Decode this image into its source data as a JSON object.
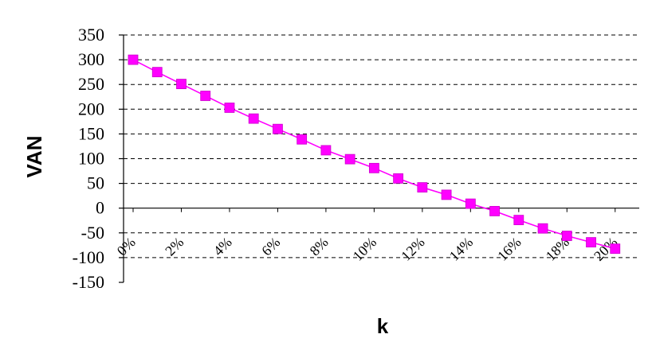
{
  "chart_data": {
    "type": "line",
    "title": "",
    "xlabel": "k",
    "ylabel": "VAN",
    "ylim": [
      -150,
      350
    ],
    "yticks": [
      350,
      300,
      250,
      200,
      150,
      100,
      50,
      0,
      -50,
      -100,
      -150
    ],
    "xlim": [
      0,
      0.21
    ],
    "xticks": [
      "0%",
      "2%",
      "4%",
      "6%",
      "8%",
      "10%",
      "12%",
      "14%",
      "16%",
      "18%",
      "20%"
    ],
    "grid": "horizontal-dashed",
    "legend": "none",
    "series": [
      {
        "color": "#ff00ff",
        "marker": "square",
        "x": [
          0,
          0.01,
          0.02,
          0.03,
          0.04,
          0.05,
          0.06,
          0.07,
          0.08,
          0.09,
          0.1,
          0.11,
          0.12,
          0.13,
          0.14,
          0.15,
          0.16,
          0.17,
          0.18,
          0.19,
          0.2
        ],
        "values": [
          300,
          275,
          251,
          227,
          203,
          181,
          160,
          139,
          117,
          99,
          81,
          60,
          42,
          27,
          9,
          -6,
          -24,
          -41,
          -56,
          -69,
          -82
        ]
      }
    ]
  }
}
